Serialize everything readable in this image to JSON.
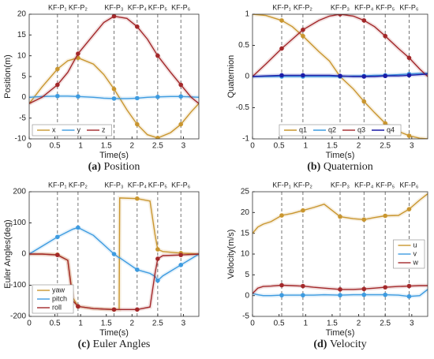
{
  "chart_data": [
    {
      "type": "line",
      "caption_label": "(a)",
      "caption": "Position",
      "xlabel": "Time(s)",
      "ylabel": "Position(m)",
      "xlim": [
        0,
        3.3
      ],
      "xticks": [
        0,
        0.5,
        1,
        1.5,
        2,
        2.5,
        3
      ],
      "ylim": [
        -10,
        20
      ],
      "yticks": [
        -10,
        -5,
        0,
        5,
        10,
        15,
        20
      ],
      "legend": "lower left",
      "legend_ncol": 3,
      "keyframes": [
        {
          "label": "KF-P₁",
          "x": 0.55
        },
        {
          "label": "KF-P₂",
          "x": 0.95
        },
        {
          "label": "KF-P₃",
          "x": 1.65
        },
        {
          "label": "KF-P₄",
          "x": 2.1
        },
        {
          "label": "KF-P₅",
          "x": 2.5
        },
        {
          "label": "KF-P₆",
          "x": 2.95
        }
      ],
      "x": [
        0,
        0.25,
        0.55,
        0.75,
        0.95,
        1.25,
        1.45,
        1.65,
        1.9,
        2.1,
        2.3,
        2.5,
        2.75,
        2.95,
        3.15,
        3.3
      ],
      "series": [
        {
          "name": "x",
          "color": "#c9962f",
          "values": [
            -1.5,
            2.5,
            6.8,
            8.8,
            9.5,
            8,
            5.5,
            2,
            -3,
            -6.5,
            -9,
            -9.8,
            -8.5,
            -6.5,
            -3.5,
            -1.5
          ]
        },
        {
          "name": "y",
          "color": "#3d9be0",
          "values": [
            0,
            0.2,
            0.3,
            0.3,
            0.2,
            0,
            -0.2,
            -0.3,
            -0.3,
            -0.2,
            0,
            0.1,
            0.2,
            0.2,
            0.1,
            0
          ]
        },
        {
          "name": "z",
          "color": "#a3282a",
          "values": [
            -1.5,
            0,
            3,
            6,
            10.5,
            15,
            18,
            19.5,
            19,
            17,
            14,
            10,
            6,
            3,
            0,
            -1.5
          ]
        }
      ]
    },
    {
      "type": "line",
      "caption_label": "(b)",
      "caption": "Quaternion",
      "xlabel": "Time(s)",
      "ylabel": "Quaternion",
      "xlim": [
        0,
        3.3
      ],
      "xticks": [
        0,
        0.5,
        1,
        1.5,
        2,
        2.5,
        3
      ],
      "ylim": [
        -1,
        1
      ],
      "yticks": [
        -1,
        -0.5,
        0,
        0.5,
        1
      ],
      "legend": "lower center",
      "legend_ncol": 4,
      "keyframes": [
        {
          "label": "KF-P₁",
          "x": 0.55
        },
        {
          "label": "KF-P₂",
          "x": 0.95
        },
        {
          "label": "KF-P₃",
          "x": 1.65
        },
        {
          "label": "KF-P₄",
          "x": 2.1
        },
        {
          "label": "KF-P₅",
          "x": 2.5
        },
        {
          "label": "KF-P₆",
          "x": 2.95
        }
      ],
      "x": [
        0,
        0.25,
        0.55,
        0.75,
        0.95,
        1.25,
        1.45,
        1.65,
        1.9,
        2.1,
        2.3,
        2.5,
        2.75,
        2.95,
        3.15,
        3.3
      ],
      "series": [
        {
          "name": "q1",
          "color": "#c9962f",
          "values": [
            1,
            0.98,
            0.9,
            0.8,
            0.65,
            0.4,
            0.25,
            0,
            -0.2,
            -0.4,
            -0.58,
            -0.75,
            -0.88,
            -0.95,
            -0.99,
            -1
          ]
        },
        {
          "name": "q2",
          "color": "#3d9be0",
          "values": [
            0,
            0,
            0,
            0,
            0,
            0,
            0,
            0,
            0.01,
            0.01,
            0.02,
            0.02,
            0.03,
            0.04,
            0.05,
            0.05
          ]
        },
        {
          "name": "q3",
          "color": "#a3282a",
          "values": [
            0,
            0.2,
            0.45,
            0.6,
            0.75,
            0.9,
            0.97,
            1,
            0.97,
            0.9,
            0.8,
            0.65,
            0.45,
            0.3,
            0.12,
            0
          ]
        },
        {
          "name": "q4",
          "color": "#1a1aa6",
          "values": [
            0,
            0.01,
            0.02,
            0.02,
            0.02,
            0.02,
            0.02,
            0.01,
            0,
            0,
            0,
            0.01,
            0.01,
            0.02,
            0.03,
            0.04
          ]
        }
      ]
    },
    {
      "type": "line",
      "caption_label": "(c)",
      "caption": "Euler Angles",
      "xlabel": "Time(s)",
      "ylabel": "Euler Angles(deg)",
      "xlim": [
        0,
        3.3
      ],
      "xticks": [
        0,
        0.5,
        1,
        1.5,
        2,
        2.5,
        3
      ],
      "ylim": [
        -200,
        200
      ],
      "yticks": [
        -200,
        -100,
        0,
        100,
        200
      ],
      "legend": "lower left",
      "legend_ncol": 1,
      "keyframes": [
        {
          "label": "KF-P₁",
          "x": 0.55
        },
        {
          "label": "KF-P₂",
          "x": 0.95
        },
        {
          "label": "KF-P₃",
          "x": 1.65
        },
        {
          "label": "KF-P₄",
          "x": 2.1
        },
        {
          "label": "KF-P₅",
          "x": 2.5
        },
        {
          "label": "KF-P₆",
          "x": 2.95
        }
      ],
      "x": [
        0,
        0.25,
        0.55,
        0.75,
        0.85,
        0.95,
        1.25,
        1.65,
        1.75,
        1.76,
        2.1,
        2.35,
        2.45,
        2.5,
        2.6,
        2.95,
        3.3
      ],
      "series": [
        {
          "name": "yaw",
          "color": "#c9962f",
          "values": [
            0,
            0,
            -2,
            -20,
            -140,
            -168,
            -175,
            -178,
            -178,
            180,
            178,
            170,
            60,
            15,
            8,
            3,
            0
          ]
        },
        {
          "name": "pitch",
          "color": "#3d9be0",
          "values": [
            0,
            25,
            55,
            72,
            80,
            85,
            60,
            0,
            -12,
            -12,
            -50,
            -62,
            -72,
            -85,
            -70,
            -35,
            0
          ]
        },
        {
          "name": "roll",
          "color": "#a3282a",
          "values": [
            0,
            0,
            -3,
            -20,
            -150,
            -168,
            -175,
            -178,
            -178,
            -178,
            -178,
            -170,
            -60,
            -15,
            -5,
            -3,
            0
          ]
        }
      ]
    },
    {
      "type": "line",
      "caption_label": "(d)",
      "caption": "Velocity",
      "xlabel": "Time(s)",
      "ylabel": "Velocity(m/s)",
      "xlim": [
        0,
        3.3
      ],
      "xticks": [
        0,
        0.5,
        1,
        1.5,
        2,
        2.5,
        3
      ],
      "ylim": [
        -5,
        25
      ],
      "yticks": [
        -5,
        0,
        5,
        10,
        15,
        20,
        25
      ],
      "legend": "center right",
      "legend_ncol": 1,
      "keyframes": [
        {
          "label": "KF-P₁",
          "x": 0.55
        },
        {
          "label": "KF-P₂",
          "x": 0.95
        },
        {
          "label": "KF-P₃",
          "x": 1.65
        },
        {
          "label": "KF-P₄",
          "x": 2.1
        },
        {
          "label": "KF-P₅",
          "x": 2.5
        },
        {
          "label": "KF-P₆",
          "x": 2.95
        }
      ],
      "x": [
        0,
        0.1,
        0.2,
        0.35,
        0.55,
        0.75,
        0.95,
        1.15,
        1.35,
        1.65,
        1.9,
        2.1,
        2.3,
        2.5,
        2.75,
        2.95,
        3.15,
        3.3
      ],
      "series": [
        {
          "name": "u",
          "color": "#c9962f",
          "values": [
            15,
            16.5,
            17.2,
            17.8,
            19.3,
            19.8,
            20.5,
            21.2,
            22,
            19,
            18.5,
            18.3,
            18.8,
            19.2,
            19.3,
            20.8,
            23,
            24.5
          ]
        },
        {
          "name": "v",
          "color": "#3d9be0",
          "values": [
            0.5,
            0.2,
            0,
            0,
            0.1,
            0.1,
            0.1,
            0.1,
            0.2,
            0.1,
            0.2,
            0.2,
            0.2,
            0.2,
            0.1,
            -0.2,
            0,
            1.5
          ]
        },
        {
          "name": "w",
          "color": "#a3282a",
          "values": [
            0.5,
            1.8,
            2.2,
            2.3,
            2.5,
            2.4,
            2.3,
            2,
            1.8,
            1.5,
            1.5,
            1.6,
            1.8,
            2,
            2.2,
            2.3,
            2.4,
            2.4
          ]
        }
      ]
    }
  ]
}
